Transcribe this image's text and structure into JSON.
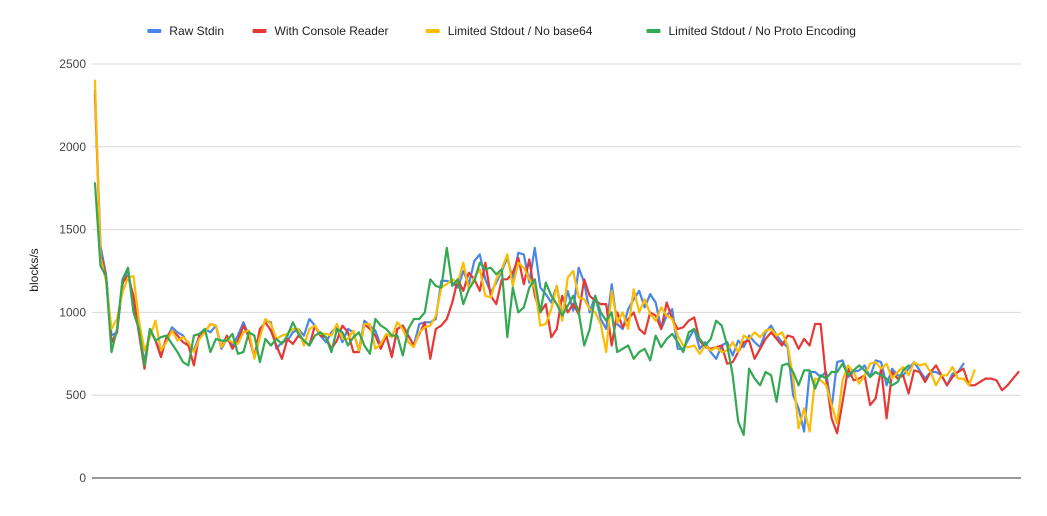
{
  "chart_data": {
    "type": "line",
    "title": "",
    "xlabel": "",
    "ylabel": "blocks/s",
    "ylim": [
      0,
      2500
    ],
    "yticks": [
      0,
      500,
      1000,
      1500,
      2000,
      2500
    ],
    "grid": "horizontal",
    "legend_position": "top",
    "series": [
      {
        "name": "Raw Stdin",
        "color": "#4a86e8",
        "x_start": 0,
        "values": [
          2340,
          1400,
          1230,
          860,
          880,
          1170,
          1260,
          1050,
          880,
          700,
          900,
          830,
          760,
          840,
          910,
          880,
          860,
          810,
          770,
          860,
          900,
          880,
          920,
          780,
          840,
          800,
          860,
          940,
          860,
          730,
          880,
          950,
          940,
          780,
          820,
          830,
          880,
          900,
          860,
          960,
          920,
          860,
          820,
          880,
          910,
          820,
          900,
          880,
          770,
          950,
          920,
          890,
          800,
          860,
          740,
          900,
          920,
          860,
          800,
          930,
          940,
          940,
          960,
          1190,
          1190,
          1180,
          1150,
          1250,
          1170,
          1310,
          1350,
          1200,
          1120,
          1180,
          1250,
          1330,
          1200,
          1360,
          1350,
          1180,
          1390,
          1150,
          1110,
          1060,
          1160,
          980,
          1130,
          1010,
          1270,
          1180,
          1000,
          1100,
          960,
          900,
          1170,
          930,
          900,
          1020,
          1080,
          1130,
          1030,
          1110,
          1060,
          900,
          980,
          1020,
          780,
          780,
          840,
          900,
          780,
          820,
          760,
          720,
          800,
          820,
          740,
          830,
          790,
          860,
          820,
          790,
          880,
          920,
          860,
          820,
          790,
          500,
          420,
          280,
          640,
          640,
          610,
          640,
          420,
          700,
          710,
          610,
          640,
          650,
          680,
          610,
          710,
          700,
          560,
          660,
          620,
          620,
          660,
          700,
          650,
          600,
          640,
          640,
          620,
          560,
          630,
          640,
          690
        ]
      },
      {
        "name": "With Console Reader",
        "color": "#e53935",
        "x_start": 0,
        "values": [
          2320,
          1350,
          1220,
          820,
          880,
          1180,
          1220,
          1100,
          870,
          660,
          900,
          830,
          730,
          850,
          890,
          860,
          820,
          800,
          680,
          870,
          880,
          930,
          920,
          790,
          860,
          780,
          830,
          920,
          850,
          730,
          900,
          940,
          890,
          800,
          720,
          840,
          810,
          860,
          830,
          800,
          920,
          860,
          850,
          780,
          830,
          920,
          880,
          760,
          760,
          930,
          900,
          860,
          780,
          860,
          730,
          900,
          920,
          860,
          800,
          870,
          940,
          720,
          900,
          920,
          960,
          1060,
          1200,
          1130,
          1240,
          1200,
          1130,
          1300,
          1100,
          1050,
          1200,
          1200,
          1240,
          1330,
          1170,
          1320,
          1100,
          1000,
          1050,
          850,
          900,
          1100,
          1000,
          1050,
          990,
          1200,
          1100,
          1070,
          1050,
          1050,
          800,
          1000,
          910,
          960,
          1000,
          900,
          870,
          1000,
          980,
          900,
          1060,
          960,
          900,
          910,
          950,
          970,
          830,
          790,
          780,
          790,
          800,
          690,
          700,
          760,
          820,
          830,
          720,
          780,
          840,
          880,
          840,
          800,
          860,
          850,
          780,
          840,
          800,
          930,
          930,
          600,
          360,
          270,
          460,
          660,
          590,
          600,
          620,
          440,
          480,
          660,
          360,
          640,
          600,
          620,
          510,
          650,
          640,
          580,
          640,
          680,
          620,
          560,
          610,
          640,
          660,
          560,
          560,
          580,
          600,
          600,
          590,
          530,
          560,
          600,
          640
        ]
      },
      {
        "name": "Limited Stdout / No base64",
        "color": "#fbbc04",
        "x_start": 0,
        "values": [
          2400,
          1330,
          1190,
          900,
          960,
          1120,
          1210,
          1220,
          950,
          770,
          850,
          950,
          770,
          820,
          890,
          830,
          850,
          820,
          760,
          840,
          880,
          930,
          920,
          790,
          840,
          820,
          810,
          880,
          890,
          720,
          850,
          960,
          930,
          840,
          860,
          870,
          900,
          900,
          800,
          900,
          920,
          870,
          870,
          860,
          930,
          840,
          840,
          890,
          770,
          930,
          930,
          780,
          810,
          870,
          850,
          940,
          900,
          820,
          790,
          880,
          910,
          920,
          980,
          1150,
          1170,
          1200,
          1180,
          1300,
          1140,
          1210,
          1260,
          1100,
          1090,
          1200,
          1260,
          1350,
          1160,
          1300,
          1270,
          1200,
          1150,
          920,
          930,
          1020,
          1160,
          950,
          1210,
          1250,
          1090,
          1080,
          1020,
          1000,
          930,
          760,
          1130,
          940,
          1000,
          900,
          1140,
          1000,
          1080,
          990,
          950,
          1030,
          980,
          960,
          860,
          800,
          790,
          800,
          750,
          800,
          770,
          790,
          760,
          770,
          820,
          760,
          860,
          840,
          880,
          850,
          890,
          900,
          860,
          880,
          800,
          610,
          300,
          420,
          280,
          600,
          590,
          560,
          440,
          330,
          590,
          680,
          640,
          570,
          620,
          690,
          700,
          660,
          690,
          600,
          640,
          670,
          620,
          700,
          680,
          690,
          640,
          560,
          620,
          620,
          670,
          600,
          600,
          560,
          650
        ]
      },
      {
        "name": "Limited Stdout / No Proto Encoding",
        "color": "#34a853",
        "x_start": 0,
        "values": [
          1780,
          1280,
          1220,
          760,
          900,
          1200,
          1270,
          1000,
          900,
          680,
          900,
          830,
          850,
          860,
          810,
          760,
          700,
          680,
          860,
          870,
          900,
          760,
          840,
          830,
          830,
          870,
          750,
          760,
          880,
          860,
          700,
          840,
          800,
          840,
          810,
          860,
          940,
          870,
          830,
          800,
          860,
          880,
          850,
          760,
          900,
          880,
          800,
          850,
          880,
          800,
          750,
          960,
          920,
          900,
          860,
          860,
          740,
          900,
          960,
          960,
          1000,
          1200,
          1160,
          1150,
          1390,
          1160,
          1200,
          1050,
          1140,
          1190,
          1300,
          1260,
          1270,
          1230,
          1260,
          850,
          1150,
          1000,
          1030,
          1150,
          1200,
          1000,
          1180,
          1100,
          1050,
          980,
          1040,
          1100,
          1000,
          800,
          900,
          1100,
          1000,
          950,
          1000,
          760,
          780,
          800,
          720,
          760,
          780,
          710,
          860,
          790,
          840,
          870,
          820,
          760,
          880,
          900,
          840,
          800,
          840,
          950,
          920,
          800,
          620,
          340,
          260,
          660,
          600,
          560,
          640,
          620,
          460,
          680,
          690,
          640,
          560,
          650,
          650,
          540,
          620,
          600,
          640,
          640,
          690,
          620,
          650,
          680,
          650,
          610,
          640,
          620,
          600,
          560,
          580,
          650,
          680
        ]
      }
    ]
  }
}
